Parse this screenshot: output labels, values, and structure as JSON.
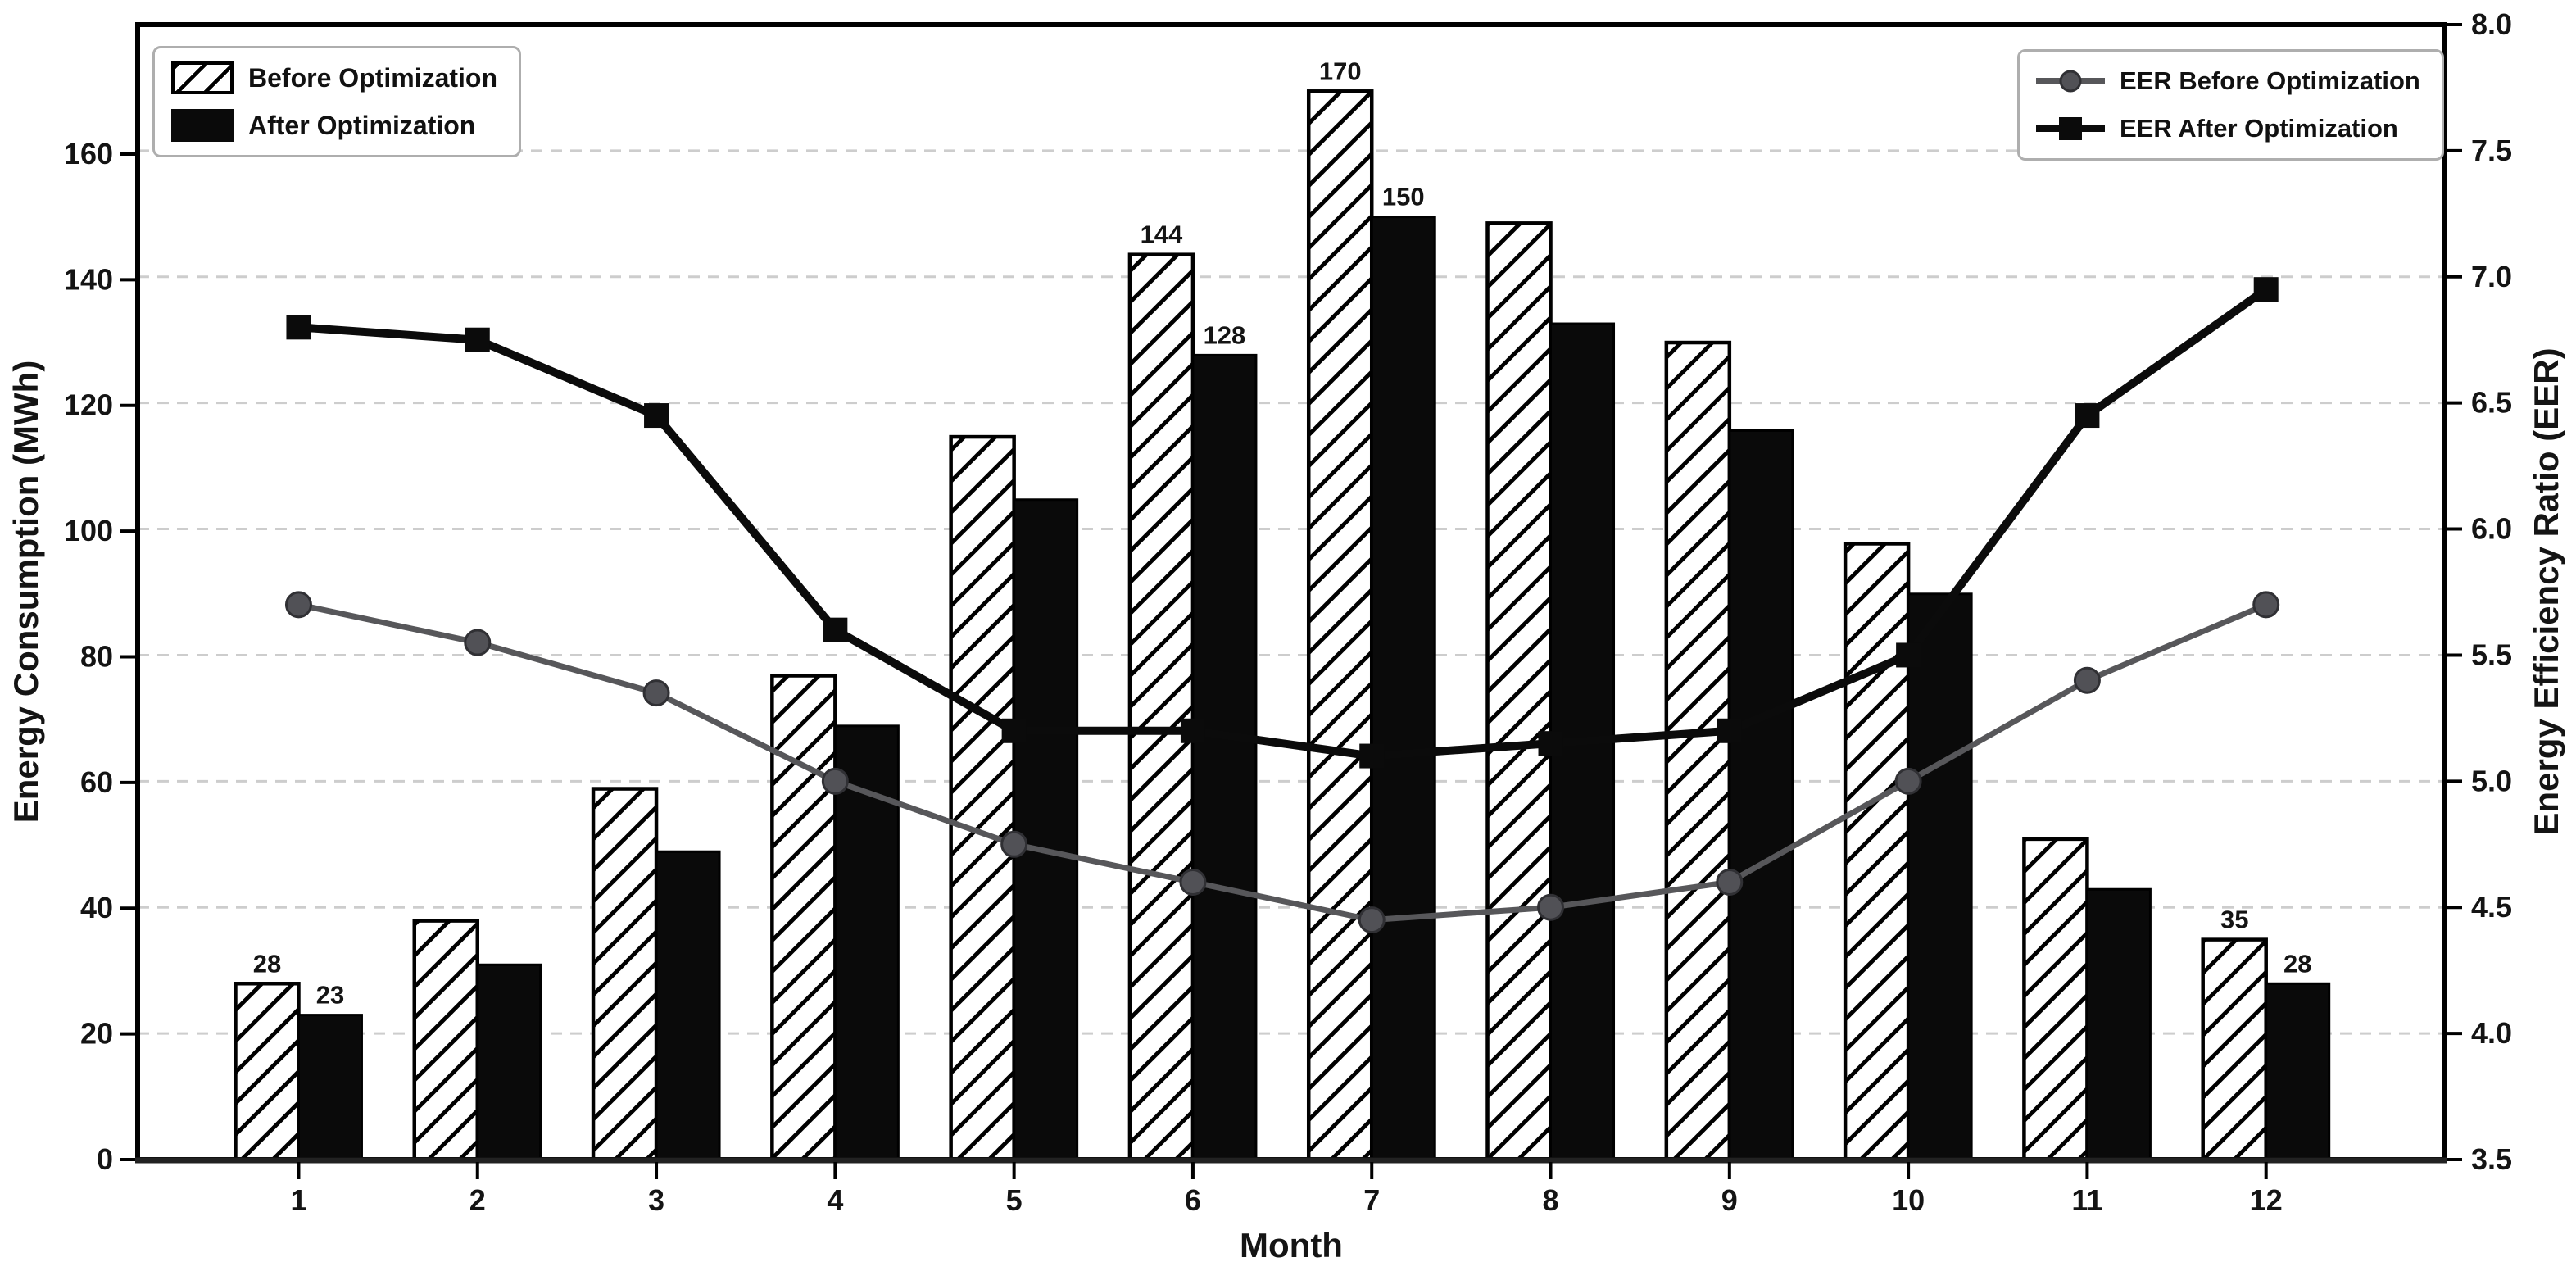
{
  "chart_data": {
    "type": "combo-bar-line-dual-axis",
    "title": "",
    "xlabel": "Month",
    "ylabel_left": "Energy Consumption (MWh)",
    "ylabel_right": "Energy Efficiency Ratio (EER)",
    "categories": [
      1,
      2,
      3,
      4,
      5,
      6,
      7,
      8,
      9,
      10,
      11,
      12
    ],
    "series": [
      {
        "name": "Before Optimization",
        "type": "bar",
        "axis": "left",
        "style": "hatched-white",
        "values": [
          28,
          38,
          59,
          77,
          115,
          144,
          170,
          149,
          130,
          98,
          51,
          35
        ]
      },
      {
        "name": "After Optimization",
        "type": "bar",
        "axis": "left",
        "style": "solid-black",
        "values": [
          23,
          31,
          49,
          69,
          105,
          128,
          150,
          133,
          116,
          90,
          43,
          28
        ]
      },
      {
        "name": "EER Before Optimization",
        "type": "line",
        "axis": "right",
        "marker": "circle",
        "color": "#57575a",
        "values": [
          5.7,
          5.55,
          5.35,
          5.0,
          4.75,
          4.6,
          4.45,
          4.5,
          4.6,
          5.0,
          5.4,
          5.7
        ]
      },
      {
        "name": "EER After Optimization",
        "type": "line",
        "axis": "right",
        "marker": "square",
        "color": "#0b0b0b",
        "values": [
          6.8,
          6.75,
          6.45,
          5.6,
          5.2,
          5.2,
          5.1,
          5.15,
          5.2,
          5.5,
          6.45,
          6.95
        ]
      }
    ],
    "bar_value_labels": [
      {
        "month": 1,
        "before": "28",
        "after": "23"
      },
      {
        "month": 6,
        "before": "144",
        "after": "128"
      },
      {
        "month": 7,
        "before": "170",
        "after": "150"
      },
      {
        "month": 12,
        "before": "35",
        "after": "28"
      }
    ],
    "axes": {
      "left": {
        "ticks": [
          0,
          20,
          40,
          60,
          80,
          100,
          120,
          140,
          160
        ],
        "range": [
          0,
          180.6
        ]
      },
      "right": {
        "ticks": [
          3.5,
          4.0,
          4.5,
          5.0,
          5.5,
          6.0,
          6.5,
          7.0,
          7.5,
          8.0
        ],
        "range": [
          3.5,
          8.0
        ]
      },
      "x": {
        "ticks": [
          "1",
          "2",
          "3",
          "4",
          "5",
          "6",
          "7",
          "8",
          "9",
          "10",
          "11",
          "12"
        ],
        "range": [
          0.1,
          13.0
        ]
      }
    },
    "legend_left": {
      "items": [
        "Before Optimization",
        "After Optimization"
      ]
    },
    "legend_right": {
      "items": [
        "EER Before Optimization",
        "EER After Optimization"
      ]
    },
    "grid": "dashed-horizontal",
    "colors": {
      "background": "#ffffff",
      "bar_after": "#0a0a0a",
      "hatch_fg": "#000000",
      "line_before": "#57575a",
      "line_after": "#0b0b0b",
      "gridline": "#cdcdcd",
      "spine": "#000000"
    }
  }
}
